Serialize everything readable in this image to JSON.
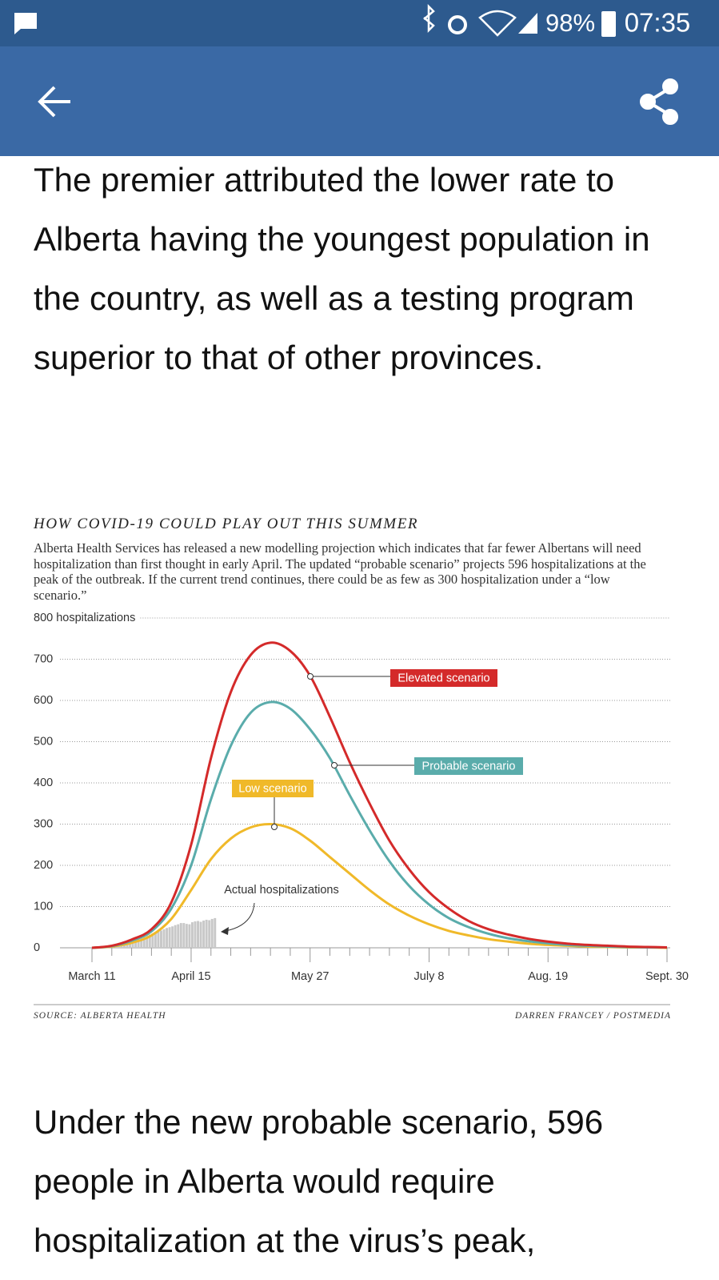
{
  "status_bar": {
    "battery": "98%",
    "time": "07:35"
  },
  "article": {
    "paragraph_1": "The premier attributed the lower rate to Alberta having the youngest population in the country, as well as a testing program superior to that of other provinces.",
    "paragraph_2": "Under the new probable scenario, 596 people in Alberta would require hospitalization at the virus’s peak,"
  },
  "chart_data": {
    "type": "line",
    "title": "HOW COVID-19 COULD PLAY OUT THIS SUMMER",
    "subtitle": "Alberta Health Services has released a new modelling projection which indicates that far fewer Albertans will need hospitalization than first thought in early April. The updated “probable scenario” projects 596 hospitalizations at the peak of the outbreak. If the current trend continues, there could be as few as 300 hospitalization under a “low scenario.”",
    "source": "SOURCE: ALBERTA HEALTH",
    "credit": "DARREN FRANCEY / POSTMEDIA",
    "categories": [
      "March 11",
      null,
      null,
      null,
      null,
      "April 15",
      null,
      null,
      null,
      null,
      null,
      "May 27",
      null,
      null,
      null,
      null,
      null,
      "July 8",
      null,
      null,
      null,
      null,
      null,
      "Aug. 19",
      null,
      null,
      null,
      null,
      null,
      "Sept. 30"
    ],
    "series": [
      {
        "name": "Elevated scenario",
        "color": "#d42a2a",
        "values": [
          0,
          5,
          20,
          45,
          110,
          250,
          460,
          620,
          710,
          740,
          720,
          660,
          560,
          450,
          350,
          260,
          190,
          135,
          95,
          65,
          45,
          32,
          22,
          15,
          10,
          7,
          5,
          3,
          2,
          1
        ]
      },
      {
        "name": "Probable scenario",
        "color": "#5aacab",
        "values": [
          0,
          4,
          17,
          40,
          95,
          200,
          360,
          490,
          570,
          596,
          580,
          530,
          460,
          370,
          285,
          210,
          150,
          105,
          72,
          50,
          34,
          23,
          16,
          11,
          7,
          5,
          3,
          2,
          1,
          1
        ]
      },
      {
        "name": "Low scenario",
        "color": "#f0b929",
        "values": [
          0,
          3,
          12,
          30,
          70,
          140,
          215,
          265,
          292,
          300,
          290,
          260,
          220,
          180,
          140,
          105,
          78,
          57,
          41,
          30,
          21,
          15,
          10,
          7,
          5,
          3,
          2,
          1,
          1,
          0
        ]
      }
    ],
    "actual": {
      "name": "Actual hospitalizations",
      "color": "#c8c8c8",
      "values": [
        0,
        0,
        1,
        1,
        2,
        3,
        4,
        5,
        7,
        9,
        11,
        13,
        15,
        17,
        19,
        21,
        24,
        26,
        28,
        30,
        32,
        35,
        38,
        40,
        42,
        45,
        48,
        50,
        52,
        55,
        57,
        60,
        60,
        58,
        57,
        62,
        64,
        65,
        63,
        66,
        68,
        67,
        70,
        72
      ]
    },
    "ylim": [
      0,
      800
    ],
    "yticks": [
      0,
      100,
      200,
      300,
      400,
      500,
      600,
      700,
      {
        "value": 800,
        "label": "800 hospitalizations"
      }
    ],
    "grid": true
  }
}
